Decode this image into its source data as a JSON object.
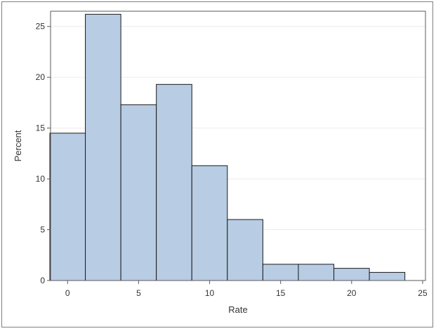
{
  "chart_data": {
    "type": "bar",
    "subtype": "histogram",
    "title": "",
    "xlabel": "Rate",
    "ylabel": "Percent",
    "xlim": [
      -1.2,
      25.2
    ],
    "ylim": [
      0,
      26.5
    ],
    "xticks": [
      0,
      5,
      10,
      15,
      20,
      25
    ],
    "yticks": [
      0,
      5,
      10,
      15,
      20,
      25
    ],
    "bin_width": 2.5,
    "bins": [
      {
        "start": -1.25,
        "end": 1.25,
        "value": 14.5
      },
      {
        "start": 1.25,
        "end": 3.75,
        "value": 26.2
      },
      {
        "start": 3.75,
        "end": 6.25,
        "value": 17.3
      },
      {
        "start": 6.25,
        "end": 8.75,
        "value": 19.3
      },
      {
        "start": 8.75,
        "end": 11.25,
        "value": 11.3
      },
      {
        "start": 11.25,
        "end": 13.75,
        "value": 6.0
      },
      {
        "start": 13.75,
        "end": 16.25,
        "value": 1.6
      },
      {
        "start": 16.25,
        "end": 18.75,
        "value": 1.6
      },
      {
        "start": 18.75,
        "end": 21.25,
        "value": 1.2
      },
      {
        "start": 21.25,
        "end": 23.75,
        "value": 0.8
      }
    ],
    "grid": true,
    "colors": {
      "fill": "#b8cce4",
      "stroke": "#1a1a1a",
      "grid": "#ebebeb",
      "axis": "#5a5a5a"
    }
  }
}
